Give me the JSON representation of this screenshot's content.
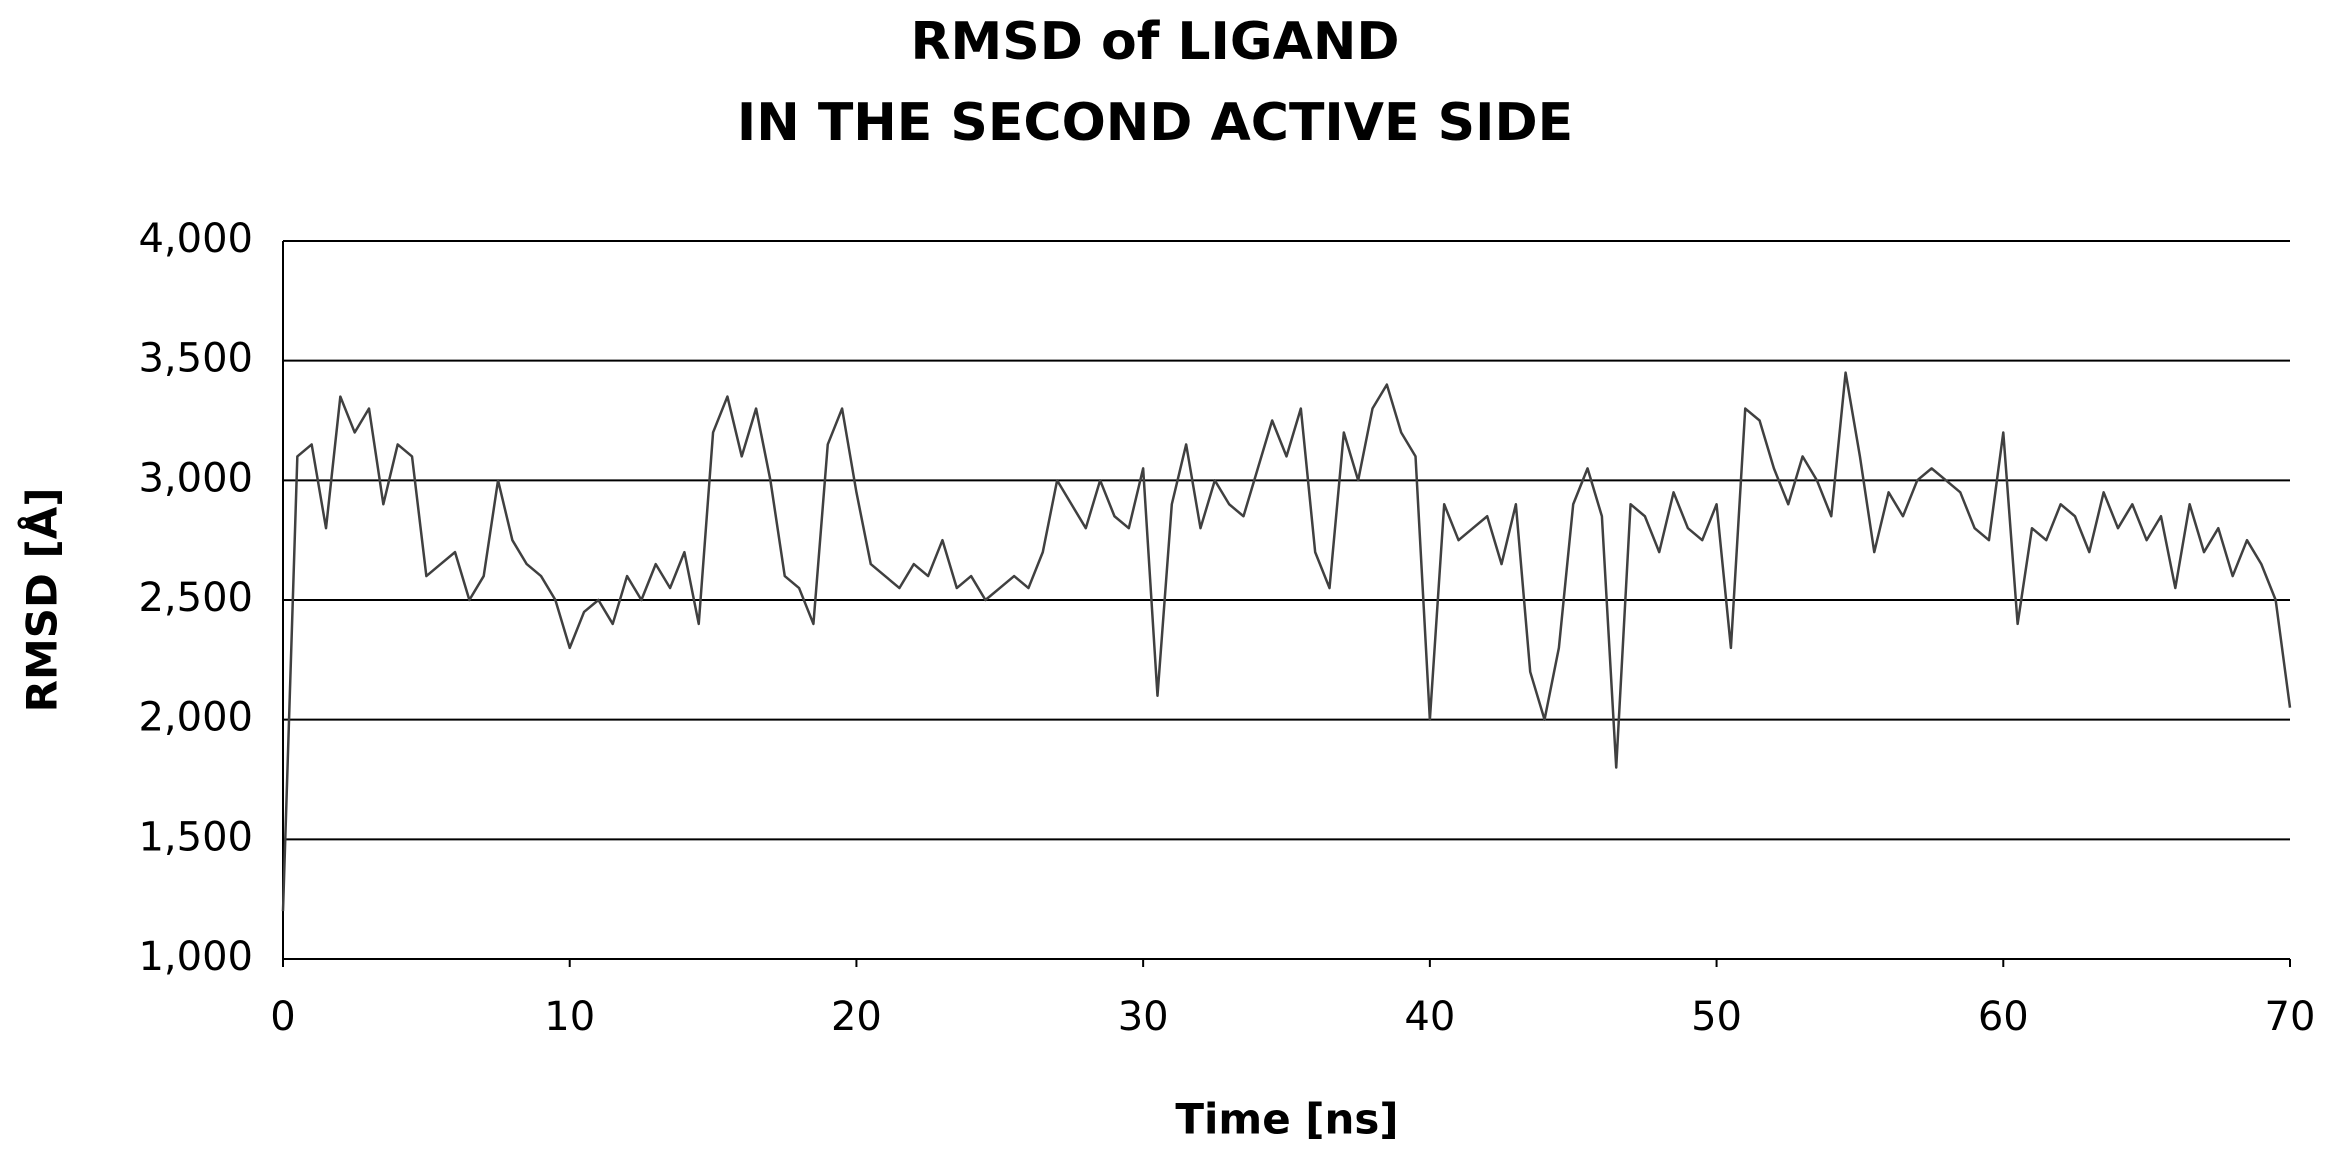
{
  "chart_data": {
    "type": "line",
    "title": [
      "RMSD of LIGAND",
      "IN THE SECOND ACTIVE SIDE"
    ],
    "x_label": "Time [ns]",
    "y_label": "RMSD [Å]",
    "xlim": [
      0,
      70
    ],
    "xticks": [
      0,
      10,
      20,
      30,
      40,
      50,
      60,
      70
    ],
    "ylim": [
      1000,
      4000
    ],
    "yticks": [
      {
        "value": 1000,
        "label": "1,000"
      },
      {
        "value": 1500,
        "label": "1,500"
      },
      {
        "value": 2000,
        "label": "2,000"
      },
      {
        "value": 2500,
        "label": "2,500"
      },
      {
        "value": 3000,
        "label": "3,000"
      },
      {
        "value": 3500,
        "label": "3,500"
      },
      {
        "value": 4000,
        "label": "4,000"
      }
    ],
    "grid": true,
    "x": [
      0,
      0.5,
      1,
      1.5,
      2,
      2.5,
      3,
      3.5,
      4,
      4.5,
      5,
      5.5,
      6,
      6.5,
      7,
      7.5,
      8,
      8.5,
      9,
      9.5,
      10,
      10.5,
      11,
      11.5,
      12,
      12.5,
      13,
      13.5,
      14,
      14.5,
      15,
      15.5,
      16,
      16.5,
      17,
      17.5,
      18,
      18.5,
      19,
      19.5,
      20,
      20.5,
      21,
      21.5,
      22,
      22.5,
      23,
      23.5,
      24,
      24.5,
      25,
      25.5,
      26,
      26.5,
      27,
      27.5,
      28,
      28.5,
      29,
      29.5,
      30,
      30.5,
      31,
      31.5,
      32,
      32.5,
      33,
      33.5,
      34,
      34.5,
      35,
      35.5,
      36,
      36.5,
      37,
      37.5,
      38,
      38.5,
      39,
      39.5,
      40,
      40.5,
      41,
      41.5,
      42,
      42.5,
      43,
      43.5,
      44,
      44.5,
      45,
      45.5,
      46,
      46.5,
      47,
      47.5,
      48,
      48.5,
      49,
      49.5,
      50,
      50.5,
      51,
      51.5,
      52,
      52.5,
      53,
      53.5,
      54,
      54.5,
      55,
      55.5,
      56,
      56.5,
      57,
      57.5,
      58,
      58.5,
      59,
      59.5,
      60,
      60.5,
      61,
      61.5,
      62,
      62.5,
      63,
      63.5,
      64,
      64.5,
      65,
      65.5,
      66,
      66.5,
      67,
      67.5,
      68,
      68.5,
      69,
      69.5,
      70
    ],
    "series": [
      {
        "name": "RMSD",
        "color": "#404040",
        "values": [
          1200,
          3100,
          3150,
          2800,
          3350,
          3200,
          3300,
          2900,
          3150,
          3100,
          2600,
          2650,
          2700,
          2500,
          2600,
          3000,
          2750,
          2650,
          2600,
          2500,
          2300,
          2450,
          2500,
          2400,
          2600,
          2500,
          2650,
          2550,
          2700,
          2400,
          3200,
          3350,
          3100,
          3300,
          3000,
          2600,
          2550,
          2400,
          3150,
          3300,
          2950,
          2650,
          2600,
          2550,
          2650,
          2600,
          2750,
          2550,
          2600,
          2500,
          2550,
          2600,
          2550,
          2700,
          3000,
          2900,
          2800,
          3000,
          2850,
          2800,
          3050,
          2100,
          2900,
          3150,
          2800,
          3000,
          2900,
          2850,
          3050,
          3250,
          3100,
          3300,
          2700,
          2550,
          3200,
          3000,
          3300,
          3400,
          3200,
          3100,
          2000,
          2900,
          2750,
          2800,
          2850,
          2650,
          2900,
          2200,
          2000,
          2300,
          2900,
          3050,
          2850,
          1800,
          2900,
          2850,
          2700,
          2950,
          2800,
          2750,
          2900,
          2300,
          3300,
          3250,
          3050,
          2900,
          3100,
          3000,
          2850,
          3450,
          3100,
          2700,
          2950,
          2850,
          3000,
          3050,
          3000,
          2950,
          2800,
          2750,
          3200,
          2400,
          2800,
          2750,
          2900,
          2850,
          2700,
          2950,
          2800,
          2900,
          2750,
          2850,
          2550,
          2900,
          2700,
          2800,
          2600,
          2750,
          2650,
          2500,
          2050
        ]
      }
    ]
  }
}
